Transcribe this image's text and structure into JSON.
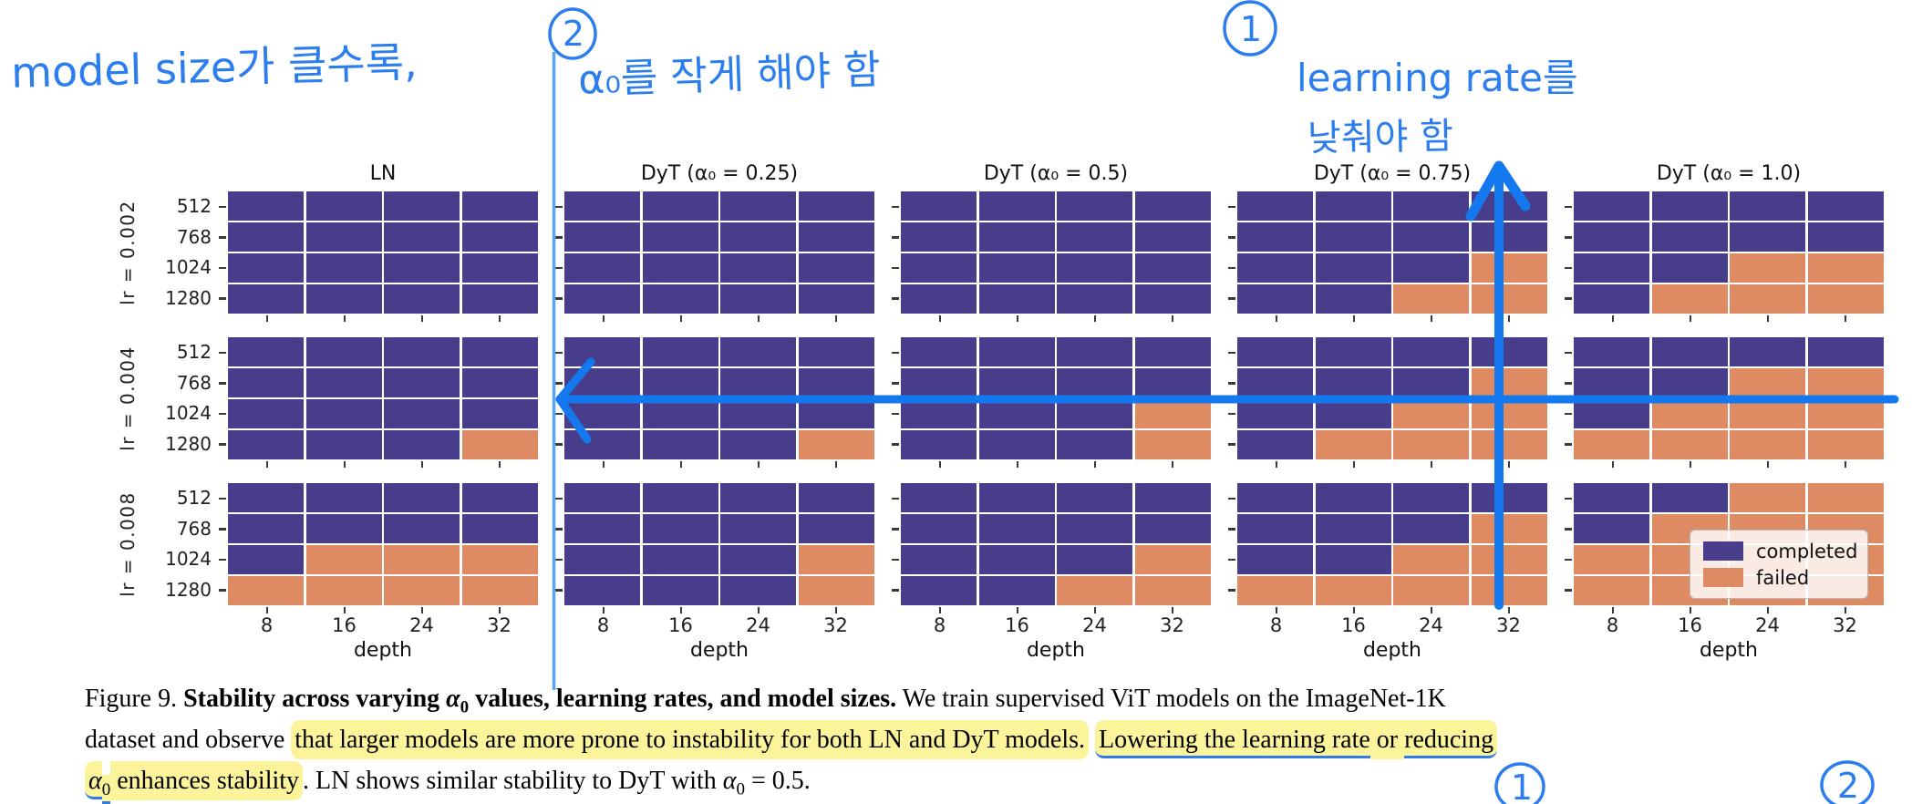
{
  "annotations": {
    "model_size_note": "model size가 클수록,",
    "alpha_note": "α₀를 작게 해야 함",
    "lr_note_line1": "learning rate를",
    "lr_note_line2": "낮춰야 함",
    "circle_top_1": "1",
    "circle_top_2": "2",
    "circle_bottom_1": "1",
    "circle_bottom_2": "2",
    "pen_color": "#2C7DEE",
    "arrow_color": "#1478EE",
    "thin_line_color": "#57A6F6",
    "highlight_color": "#F9EE5C"
  },
  "chart_data": {
    "type": "heatmap",
    "xlabel": "depth",
    "x_ticks": [
      "8",
      "16",
      "24",
      "32"
    ],
    "y_ticks": [
      "512",
      "768",
      "1024",
      "1280"
    ],
    "row_labels": [
      "lr = 0.002",
      "lr = 0.004",
      "lr = 0.008"
    ],
    "col_titles": [
      "LN",
      "DyT (α₀ = 0.25)",
      "DyT (α₀ = 0.5)",
      "DyT (α₀ = 0.75)",
      "DyT (α₀ = 1.0)"
    ],
    "status_colors": {
      "C": "#473D8B",
      "F": "#DE8B63"
    },
    "legend": [
      {
        "key": "C",
        "label": "completed"
      },
      {
        "key": "F",
        "label": "failed"
      }
    ],
    "legend_position": "lower right panel",
    "grids": [
      [
        [
          "CCCC",
          "CCCC",
          "CCCC",
          "CCCC"
        ],
        [
          "CCCC",
          "CCCC",
          "CCCC",
          "CCCC"
        ],
        [
          "CCCC",
          "CCCC",
          "CCCC",
          "CCCC"
        ],
        [
          "CCCC",
          "CCCC",
          "CCCF",
          "CCFF"
        ],
        [
          "CCCC",
          "CCCC",
          "CCFF",
          "CFFF"
        ]
      ],
      [
        [
          "CCCC",
          "CCCC",
          "CCCC",
          "CCCF"
        ],
        [
          "CCCC",
          "CCCC",
          "CCCC",
          "CCCF"
        ],
        [
          "CCCC",
          "CCCC",
          "CCCF",
          "CCCF"
        ],
        [
          "CCCC",
          "CCCF",
          "CCFF",
          "CFFF"
        ],
        [
          "CCCC",
          "CCFF",
          "CFFF",
          "FFFF"
        ]
      ],
      [
        [
          "CCCC",
          "CCCC",
          "CFFF",
          "FFFF"
        ],
        [
          "CCCC",
          "CCCC",
          "CCCF",
          "CCCF"
        ],
        [
          "CCCC",
          "CCCC",
          "CCCF",
          "CCFF"
        ],
        [
          "CCCC",
          "CCCF",
          "CCFF",
          "FFFF"
        ],
        [
          "CCFF",
          "CFFF",
          "FFFF",
          "FFFF"
        ]
      ]
    ]
  },
  "caption": {
    "lines": [
      [
        {
          "t": "Figure 9. "
        },
        {
          "t": "Stability across varying ",
          "b": 1
        },
        {
          "t": "α",
          "b": 1,
          "i": 1
        },
        {
          "t": "0",
          "b": 1,
          "sub": 1
        },
        {
          "t": " values, learning rates, and model sizes.",
          "b": 1
        },
        {
          "t": " We train supervised ViT models on the ImageNet-1K"
        }
      ],
      [
        {
          "t": "dataset and observe "
        },
        {
          "t": "that larger models are more prone to instability for both LN and DyT models.",
          "h": 1
        },
        {
          "t": " "
        },
        {
          "t": "Lowering the learning rate",
          "h": 1,
          "u": 1
        },
        {
          "t": " or ",
          "h": 1
        },
        {
          "t": "reducing",
          "h": 1,
          "u": 1
        }
      ],
      [
        {
          "t": "α",
          "h": 1,
          "u": 1,
          "i": 1
        },
        {
          "t": "0",
          "h": 1,
          "u": 1,
          "sub": 1
        },
        {
          "t": " enhances stability",
          "h": 1
        },
        {
          "t": ". LN shows similar stability to DyT with "
        },
        {
          "t": "α",
          "i": 1
        },
        {
          "t": "0",
          "sub": 1
        },
        {
          "t": " = 0.5."
        }
      ]
    ]
  }
}
